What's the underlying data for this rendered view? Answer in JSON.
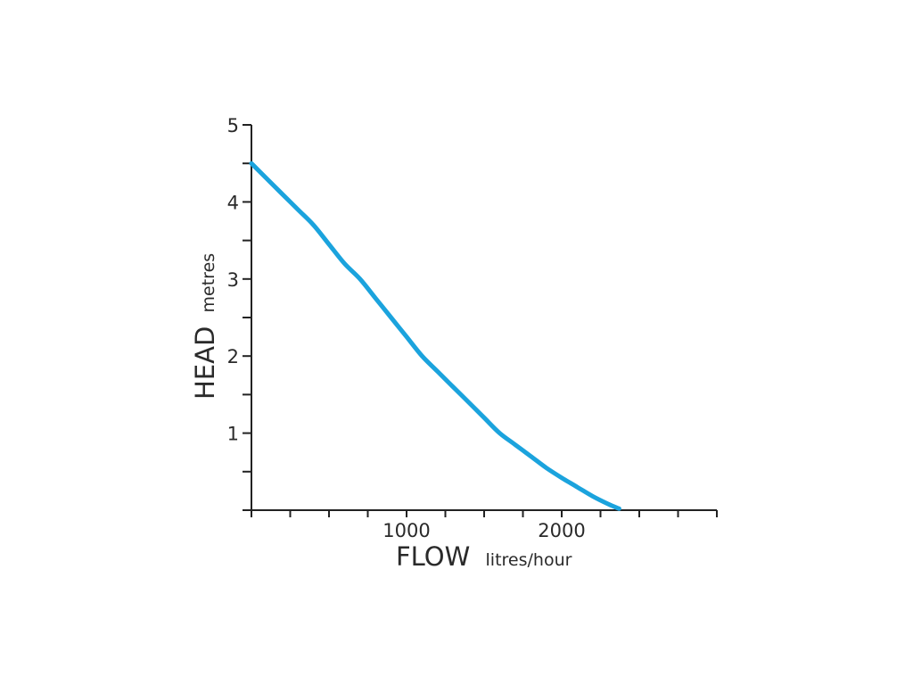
{
  "chart_data": {
    "type": "line",
    "xlabel": "FLOW",
    "xlabel_unit": "litres/hour",
    "ylabel": "HEAD",
    "ylabel_unit": "metres",
    "xlim": [
      0,
      3000
    ],
    "ylim": [
      0,
      5
    ],
    "x_major_ticks": [
      1000,
      2000
    ],
    "x_minor_ticks": [
      0,
      250,
      500,
      750,
      1000,
      1250,
      1500,
      1750,
      2000,
      2250,
      2500,
      2750,
      3000
    ],
    "y_ticks": [
      0,
      0.5,
      1,
      1.5,
      2,
      2.5,
      3,
      3.5,
      4,
      4.5,
      5
    ],
    "y_tick_labels": [
      "1",
      "2",
      "3",
      "4",
      "5"
    ],
    "y_tick_label_values": [
      1,
      2,
      3,
      4,
      5
    ],
    "x_tick_labels": [
      "1000",
      "2000"
    ],
    "grid": false,
    "series": [
      {
        "color": "#1ba3dd",
        "x": [
          0,
          100,
          200,
          300,
          400,
          500,
          600,
          700,
          800,
          900,
          1000,
          1100,
          1200,
          1300,
          1400,
          1500,
          1600,
          1700,
          1800,
          1900,
          2000,
          2100,
          2200,
          2300,
          2370
        ],
        "y": [
          4.5,
          4.3,
          4.1,
          3.9,
          3.7,
          3.45,
          3.2,
          3.0,
          2.75,
          2.5,
          2.25,
          2.0,
          1.8,
          1.6,
          1.4,
          1.2,
          1.0,
          0.85,
          0.7,
          0.55,
          0.42,
          0.3,
          0.18,
          0.08,
          0.02
        ]
      }
    ]
  }
}
